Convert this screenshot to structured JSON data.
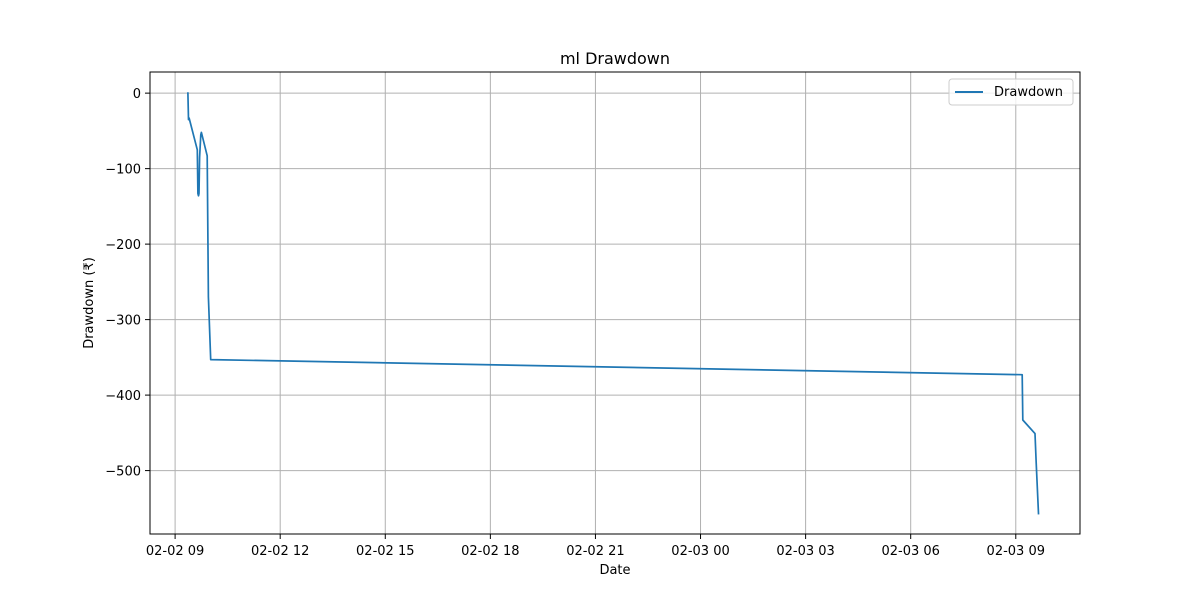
{
  "chart_data": {
    "type": "line",
    "title": "ml Drawdown",
    "xlabel": "Date",
    "ylabel": "Drawdown (₹)",
    "x_type": "time",
    "xlim": [
      "2025-02-02T08:17",
      "2025-02-03T10:50"
    ],
    "ylim": [
      -584,
      28
    ],
    "x_ticks": [
      {
        "label": "02-02 09",
        "value": "2025-02-02T09:00"
      },
      {
        "label": "02-02 12",
        "value": "2025-02-02T12:00"
      },
      {
        "label": "02-02 15",
        "value": "2025-02-02T15:00"
      },
      {
        "label": "02-02 18",
        "value": "2025-02-02T18:00"
      },
      {
        "label": "02-02 21",
        "value": "2025-02-02T21:00"
      },
      {
        "label": "02-03 00",
        "value": "2025-02-03T00:00"
      },
      {
        "label": "02-03 03",
        "value": "2025-02-03T03:00"
      },
      {
        "label": "02-03 06",
        "value": "2025-02-03T06:00"
      },
      {
        "label": "02-03 09",
        "value": "2025-02-03T09:00"
      }
    ],
    "y_ticks": [
      {
        "label": "0",
        "value": 0
      },
      {
        "label": "−100",
        "value": -100
      },
      {
        "label": "−200",
        "value": -200
      },
      {
        "label": "−300",
        "value": -300
      },
      {
        "label": "−400",
        "value": -400
      },
      {
        "label": "−500",
        "value": -500
      }
    ],
    "grid": true,
    "legend_position": "top-right",
    "series": [
      {
        "name": "Drawdown",
        "color": "#1f77b4",
        "points": [
          {
            "x": "2025-02-02T09:22",
            "y": 0
          },
          {
            "x": "2025-02-02T09:23",
            "y": -35
          },
          {
            "x": "2025-02-02T09:24",
            "y": -33
          },
          {
            "x": "2025-02-02T09:38",
            "y": -75
          },
          {
            "x": "2025-02-02T09:39",
            "y": -133
          },
          {
            "x": "2025-02-02T09:40",
            "y": -136
          },
          {
            "x": "2025-02-02T09:41",
            "y": -133
          },
          {
            "x": "2025-02-02T09:42",
            "y": -85
          },
          {
            "x": "2025-02-02T09:44",
            "y": -55
          },
          {
            "x": "2025-02-02T09:45",
            "y": -52
          },
          {
            "x": "2025-02-02T09:55",
            "y": -83
          },
          {
            "x": "2025-02-02T09:57",
            "y": -270
          },
          {
            "x": "2025-02-02T10:01",
            "y": -353
          },
          {
            "x": "2025-02-03T09:11",
            "y": -373
          },
          {
            "x": "2025-02-03T09:12",
            "y": -433
          },
          {
            "x": "2025-02-03T09:33",
            "y": -451
          },
          {
            "x": "2025-02-03T09:35",
            "y": -490
          },
          {
            "x": "2025-02-03T09:39",
            "y": -557
          }
        ]
      }
    ]
  }
}
